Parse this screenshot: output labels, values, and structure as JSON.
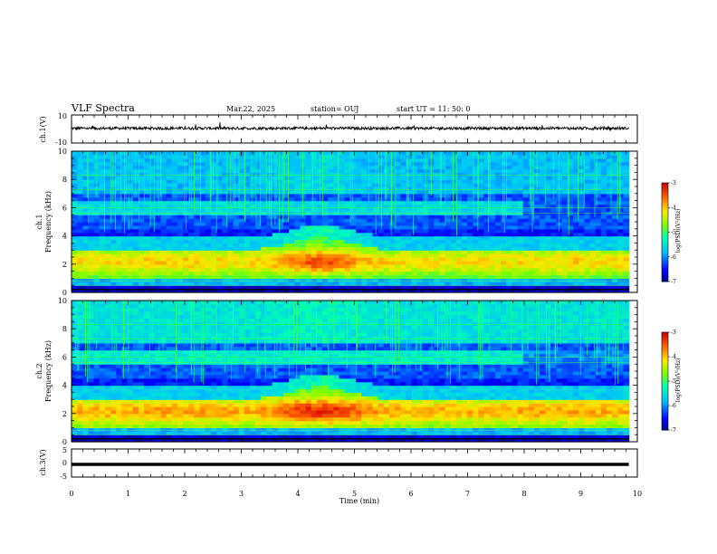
{
  "header": {
    "title": "VLF Spectra",
    "date": "Mar.22, 2025",
    "station": "station= OUJ",
    "start": "start  UT =   11: 50: 0"
  },
  "chart_data": [
    {
      "type": "line",
      "panel": "ch1-waveform",
      "ylabel": "ch.1(V)",
      "ylim": [
        -10,
        10
      ],
      "yticks": [
        "10",
        "-10"
      ],
      "baseline": 0.5,
      "color": "#000000"
    },
    {
      "type": "heatmap",
      "panel": "ch1-spectrogram",
      "ylabel_line1": "ch.1",
      "ylabel_line2": "Frequency  (kHz)",
      "ylim": [
        0,
        10
      ],
      "yticks": [
        "0",
        "2",
        "4",
        "6",
        "8",
        "10"
      ],
      "colorbar": {
        "label": "log(PSD)(V²/Hz)",
        "range": [
          -7,
          -3
        ],
        "ticks": [
          "-3",
          "-4",
          "-5",
          "-6",
          "-7"
        ]
      }
    },
    {
      "type": "heatmap",
      "panel": "ch2-spectrogram",
      "ylabel_line1": "ch.2",
      "ylabel_line2": "Frequency  (kHz)",
      "ylim": [
        0,
        10
      ],
      "yticks": [
        "0",
        "2",
        "4",
        "6",
        "8",
        "10"
      ],
      "colorbar": {
        "label": "log(PSD)(V²/Hz)",
        "range": [
          -7,
          -3
        ],
        "ticks": [
          "-3",
          "-4",
          "-5",
          "-6",
          "-7"
        ]
      }
    },
    {
      "type": "line",
      "panel": "ch3-waveform",
      "ylabel": "ch.3(V)",
      "ylim": [
        -5,
        5
      ],
      "yticks": [
        "5",
        "0",
        "-5"
      ],
      "baseline": -0.5,
      "color": "#000000"
    }
  ],
  "xaxis": {
    "label": "Time  (min)",
    "range": [
      0,
      10
    ],
    "ticks": [
      "0",
      "1",
      "2",
      "3",
      "4",
      "5",
      "6",
      "7",
      "8",
      "9",
      "10"
    ],
    "data_end": 9.85
  }
}
